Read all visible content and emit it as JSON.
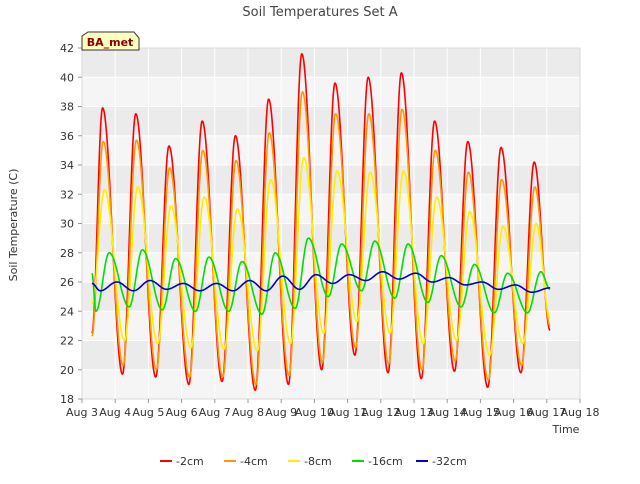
{
  "chart_data": {
    "type": "line",
    "title": "Soil Temperatures Set A",
    "xlabel": "Time",
    "ylabel": "Soil Temperature (C)",
    "ylim": [
      18,
      42
    ],
    "yticks": [
      18,
      20,
      22,
      24,
      26,
      28,
      30,
      32,
      34,
      36,
      38,
      40,
      42
    ],
    "xlim": [
      0,
      15
    ],
    "xticks": [
      0,
      1,
      2,
      3,
      4,
      5,
      6,
      7,
      8,
      9,
      10,
      11,
      12,
      13,
      14,
      15
    ],
    "xtick_labels": [
      "Aug 3",
      "Aug 4",
      "Aug 5",
      "Aug 6",
      "Aug 7",
      "Aug 8",
      "Aug 9",
      "Aug 10",
      "Aug 11",
      "Aug 12",
      "Aug 13",
      "Aug 14",
      "Aug 15",
      "Aug 16",
      "Aug 17",
      "Aug 18"
    ],
    "grid": true,
    "legend_position": "bottom",
    "annotation": "BA_met",
    "days": [
      3.0,
      4.0,
      5.0,
      6.0,
      7.0,
      8.0,
      9.0,
      10.0,
      11.0,
      12.0,
      13.0,
      14.0,
      15.0,
      16.0,
      17.0
    ],
    "series": [
      {
        "name": "-2cm",
        "color": "#ff0000",
        "min": [
          22.5,
          19.0,
          19.7,
          19.5,
          19.0,
          19.2,
          18.6,
          19.0,
          20.0,
          21.0,
          19.8,
          19.4,
          19.9,
          18.8,
          19.8,
          22.7
        ],
        "max": [
          37.9,
          37.5,
          35.3,
          37.0,
          36.0,
          38.5,
          41.6,
          39.6,
          40.0,
          40.3,
          37.0,
          35.6,
          35.2,
          34.2
        ],
        "peak_phase": 0.62,
        "trough_phase": 0.22
      },
      {
        "name": "-4cm",
        "color": "#ff9900",
        "min": [
          22.3,
          19.8,
          20.3,
          20.0,
          19.5,
          19.5,
          19.0,
          19.6,
          20.5,
          21.5,
          20.4,
          20.0,
          20.6,
          19.3,
          20.3,
          23.0
        ],
        "max": [
          35.6,
          35.7,
          33.8,
          35.0,
          34.3,
          36.2,
          39.0,
          37.5,
          37.5,
          37.8,
          35.0,
          33.5,
          33.0,
          32.5
        ],
        "peak_phase": 0.64,
        "trough_phase": 0.24
      },
      {
        "name": "-8cm",
        "color": "#ffee00",
        "min": [
          24.5,
          21.4,
          22.0,
          21.8,
          21.5,
          21.4,
          21.3,
          21.8,
          22.5,
          23.3,
          22.5,
          21.8,
          22.0,
          21.0,
          21.8,
          23.5
        ],
        "max": [
          32.3,
          32.5,
          31.2,
          31.8,
          31.0,
          33.0,
          34.5,
          33.6,
          33.5,
          33.6,
          31.8,
          30.8,
          29.8,
          30.0
        ],
        "peak_phase": 0.68,
        "trough_phase": 0.28
      },
      {
        "name": "-16cm",
        "color": "#00dd00",
        "min": [
          26.6,
          24.0,
          24.3,
          24.1,
          24.0,
          24.0,
          23.8,
          24.2,
          25.0,
          25.4,
          24.9,
          24.6,
          24.3,
          23.9,
          23.9,
          25.5
        ],
        "max": [
          28.0,
          28.2,
          27.6,
          27.7,
          27.4,
          28.0,
          29.0,
          28.6,
          28.8,
          28.6,
          27.8,
          27.2,
          26.6,
          26.7
        ],
        "peak_phase": 0.82,
        "trough_phase": 0.42
      },
      {
        "name": "-32cm",
        "color": "#0000cc",
        "min": [
          25.9,
          25.4,
          25.4,
          25.5,
          25.4,
          25.4,
          25.4,
          25.5,
          25.9,
          26.1,
          26.2,
          26.0,
          25.8,
          25.5,
          25.3,
          25.6
        ],
        "max": [
          26.0,
          26.0,
          26.1,
          25.9,
          25.9,
          26.1,
          26.4,
          26.5,
          26.5,
          26.7,
          26.6,
          26.3,
          26.0,
          25.8
        ],
        "peak_phase": 0.05,
        "trough_phase": 0.55
      }
    ]
  }
}
